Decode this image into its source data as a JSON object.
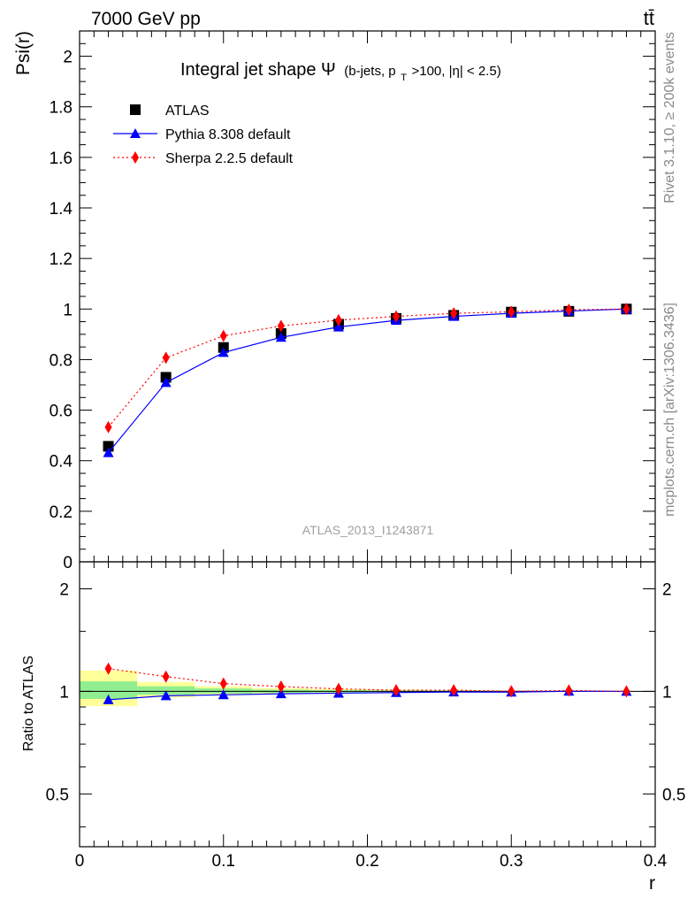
{
  "header": {
    "left": "7000 GeV pp",
    "right": "tt̄"
  },
  "side_labels": {
    "rivet": "Rivet 3.1.10, ≥ 200k events",
    "mcplots": "mcplots.cern.ch [arXiv:1306.3436]"
  },
  "title": {
    "main": "Integral jet shape Ψ",
    "sub": "(b-jets, p",
    "sub_idx": "T",
    "sub_rest": ">100, |η| < 2.5)"
  },
  "watermark": "ATLAS_2013_I1243871",
  "chart_data": [
    {
      "type": "scatter",
      "panel": "main",
      "ylabel": "Psi(r)",
      "xlabel": "r",
      "xlim": [
        0,
        0.4
      ],
      "ylim": [
        0,
        2.1
      ],
      "yticks": [
        0,
        0.2,
        0.4,
        0.6,
        0.8,
        1,
        1.2,
        1.4,
        1.6,
        1.8,
        2
      ],
      "ytick_labels": [
        "0",
        "0.2",
        "0.4",
        "0.6",
        "0.8",
        "1",
        "1.2",
        "1.4",
        "1.6",
        "1.8",
        "2"
      ],
      "legend_position": "top-left",
      "x": [
        0.02,
        0.06,
        0.1,
        0.14,
        0.18,
        0.22,
        0.26,
        0.3,
        0.34,
        0.38
      ],
      "series": [
        {
          "name": "ATLAS",
          "style": "data",
          "color": "#000000",
          "marker": "square",
          "values": [
            0.457,
            0.73,
            0.848,
            0.903,
            0.94,
            0.963,
            0.975,
            0.988,
            0.991,
            1.0
          ]
        },
        {
          "name": "Pythia 8.308 default",
          "style": "line-solid",
          "color": "#0000ff",
          "marker": "triangle",
          "values": [
            0.432,
            0.709,
            0.828,
            0.888,
            0.929,
            0.955,
            0.971,
            0.983,
            0.992,
            1.0
          ]
        },
        {
          "name": "Sherpa 2.2.5 default",
          "style": "line-dotted",
          "color": "#ff0000",
          "marker": "diamond",
          "values": [
            0.533,
            0.807,
            0.894,
            0.933,
            0.956,
            0.971,
            0.983,
            0.989,
            0.997,
            1.0
          ]
        }
      ]
    },
    {
      "type": "line",
      "panel": "ratio",
      "ylabel": "Ratio to ATLAS",
      "xlabel": "r",
      "xlim": [
        0,
        0.4
      ],
      "ylim": [
        0.35,
        2.4
      ],
      "yticks": [
        0.5,
        1,
        2
      ],
      "ytick_labels": [
        "0.5",
        "1",
        "2"
      ],
      "xticks": [
        0,
        0.1,
        0.2,
        0.3,
        0.4
      ],
      "xtick_labels": [
        "0",
        "0.1",
        "0.2",
        "0.3",
        "0.4"
      ],
      "x": [
        0.02,
        0.06,
        0.1,
        0.14,
        0.18,
        0.22,
        0.26,
        0.3,
        0.34,
        0.38
      ],
      "bands": {
        "edges": [
          0,
          0.04,
          0.08,
          0.12,
          0.16,
          0.2,
          0.24,
          0.28,
          0.32,
          0.36,
          0.4
        ],
        "inner": {
          "color": "#90ee90",
          "lo": [
            0.95,
            0.978,
            0.985,
            0.99,
            0.993,
            0.995,
            0.996,
            0.997,
            0.998,
            0.999
          ],
          "hi": [
            1.07,
            1.035,
            1.02,
            1.012,
            1.008,
            1.006,
            1.005,
            1.004,
            1.002,
            1.001
          ]
        },
        "outer": {
          "color": "#ffff99",
          "lo": [
            0.905,
            0.96,
            0.975,
            0.983,
            0.988,
            0.992,
            0.994,
            0.996,
            0.997,
            0.999
          ],
          "hi": [
            1.15,
            1.065,
            1.035,
            1.022,
            1.016,
            1.012,
            1.009,
            1.006,
            1.004,
            1.002
          ]
        }
      },
      "series": [
        {
          "name": "Pythia 8.308 default",
          "color": "#0000ff",
          "marker": "triangle",
          "values": [
            0.945,
            0.971,
            0.977,
            0.984,
            0.988,
            0.992,
            0.996,
            0.995,
            1.001,
            1.0
          ]
        },
        {
          "name": "Sherpa 2.2.5 default",
          "color": "#ff0000",
          "marker": "diamond",
          "values": [
            1.166,
            1.105,
            1.054,
            1.033,
            1.017,
            1.008,
            1.008,
            1.001,
            1.006,
            1.0
          ]
        }
      ]
    }
  ]
}
